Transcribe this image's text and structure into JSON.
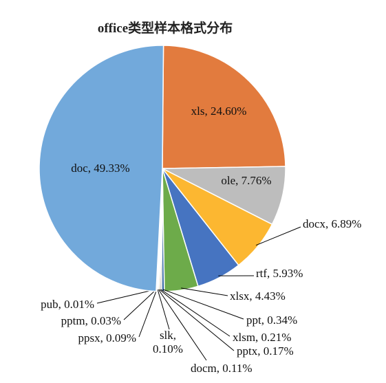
{
  "chart_data": {
    "type": "pie",
    "title": "office类型样本格式分布",
    "values": [
      24.6,
      7.76,
      6.89,
      5.93,
      4.43,
      0.34,
      0.21,
      0.17,
      0.11,
      0.1,
      0.09,
      0.03,
      0.01,
      49.33
    ],
    "value_labels": [
      "xls, 24.60%",
      "ole, 7.76%",
      "docx, 6.89%",
      "rtf, 5.93%",
      "xlsx, 4.43%",
      "ppt, 0.34%",
      "xlsm, 0.21%",
      "pptx, 0.17%",
      "docm, 0.11%",
      "slk,\n0.10%",
      "ppsx, 0.09%",
      "pptm, 0.03%",
      "pub, 0.01%",
      "doc, 49.33%"
    ],
    "colors": [
      "#e27b3e",
      "#bdbdbd",
      "#fcb731",
      "#4674c1",
      "#6dab4a",
      "#2c5f9e",
      "#8a8a8a",
      "#a37a1f",
      "#27487a",
      "#3f6f2c",
      "#7fb1e0",
      "#f09a64",
      "#d0d0d0",
      "#72a9db"
    ]
  }
}
